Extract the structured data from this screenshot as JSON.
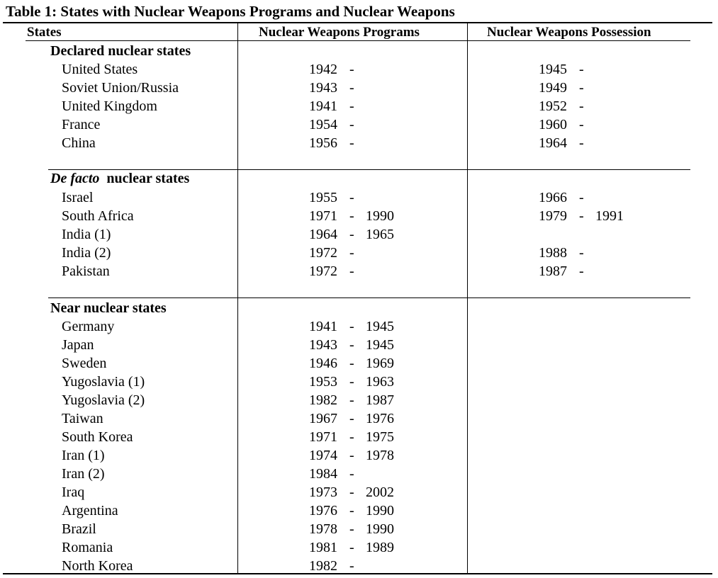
{
  "title": "Table 1: States with Nuclear Weapons Programs and Nuclear Weapons",
  "headers": {
    "states": "States",
    "programs": "Nuclear Weapons Programs",
    "possession": "Nuclear Weapons Possession"
  },
  "sections": [
    {
      "label": "Declared nuclear states",
      "rows": [
        {
          "state": "United States",
          "prog_start": "1942",
          "prog_dash": "-",
          "prog_end": "",
          "poss_start": "1945",
          "poss_dash": "-",
          "poss_end": ""
        },
        {
          "state": "Soviet Union/Russia",
          "prog_start": "1943",
          "prog_dash": "-",
          "prog_end": "",
          "poss_start": "1949",
          "poss_dash": "-",
          "poss_end": ""
        },
        {
          "state": "United Kingdom",
          "prog_start": "1941",
          "prog_dash": "-",
          "prog_end": "",
          "poss_start": "1952",
          "poss_dash": "-",
          "poss_end": ""
        },
        {
          "state": "France",
          "prog_start": "1954",
          "prog_dash": "-",
          "prog_end": "",
          "poss_start": "1960",
          "poss_dash": "-",
          "poss_end": ""
        },
        {
          "state": "China",
          "prog_start": "1956",
          "prog_dash": "-",
          "prog_end": "",
          "poss_start": "1964",
          "poss_dash": "-",
          "poss_end": ""
        }
      ]
    },
    {
      "label_italic": "De facto",
      "label": "nuclear states",
      "rows": [
        {
          "state": "Israel",
          "prog_start": "1955",
          "prog_dash": "-",
          "prog_end": "",
          "poss_start": "1966",
          "poss_dash": "-",
          "poss_end": ""
        },
        {
          "state": "South Africa",
          "prog_start": "1971",
          "prog_dash": "-",
          "prog_end": "1990",
          "poss_start": "1979",
          "poss_dash": "-",
          "poss_end": "1991"
        },
        {
          "state": "India (1)",
          "prog_start": "1964",
          "prog_dash": "-",
          "prog_end": "1965",
          "poss_start": "",
          "poss_dash": "",
          "poss_end": ""
        },
        {
          "state": "India (2)",
          "prog_start": "1972",
          "prog_dash": "-",
          "prog_end": "",
          "poss_start": "1988",
          "poss_dash": "-",
          "poss_end": ""
        },
        {
          "state": "Pakistan",
          "prog_start": "1972",
          "prog_dash": "-",
          "prog_end": "",
          "poss_start": "1987",
          "poss_dash": "-",
          "poss_end": ""
        }
      ]
    },
    {
      "label": "Near nuclear states",
      "rows": [
        {
          "state": "Germany",
          "prog_start": "1941",
          "prog_dash": "-",
          "prog_end": "1945"
        },
        {
          "state": "Japan",
          "prog_start": "1943",
          "prog_dash": "-",
          "prog_end": "1945"
        },
        {
          "state": "Sweden",
          "prog_start": "1946",
          "prog_dash": "-",
          "prog_end": "1969"
        },
        {
          "state": "Yugoslavia (1)",
          "prog_start": "1953",
          "prog_dash": "-",
          "prog_end": "1963"
        },
        {
          "state": "Yugoslavia (2)",
          "prog_start": "1982",
          "prog_dash": "-",
          "prog_end": "1987"
        },
        {
          "state": "Taiwan",
          "prog_start": "1967",
          "prog_dash": "-",
          "prog_end": "1976"
        },
        {
          "state": "South Korea",
          "prog_start": "1971",
          "prog_dash": "-",
          "prog_end": "1975"
        },
        {
          "state": "Iran (1)",
          "prog_start": "1974",
          "prog_dash": "-",
          "prog_end": "1978"
        },
        {
          "state": "Iran (2)",
          "prog_start": "1984",
          "prog_dash": "-",
          "prog_end": ""
        },
        {
          "state": "Iraq",
          "prog_start": "1973",
          "prog_dash": "-",
          "prog_end": "2002"
        },
        {
          "state": "Argentina",
          "prog_start": "1976",
          "prog_dash": "-",
          "prog_end": "1990"
        },
        {
          "state": "Brazil",
          "prog_start": "1978",
          "prog_dash": "-",
          "prog_end": "1990"
        },
        {
          "state": "Romania",
          "prog_start": "1981",
          "prog_dash": "-",
          "prog_end": "1989"
        },
        {
          "state": "North Korea",
          "prog_start": "1982",
          "prog_dash": "-",
          "prog_end": ""
        }
      ]
    }
  ]
}
